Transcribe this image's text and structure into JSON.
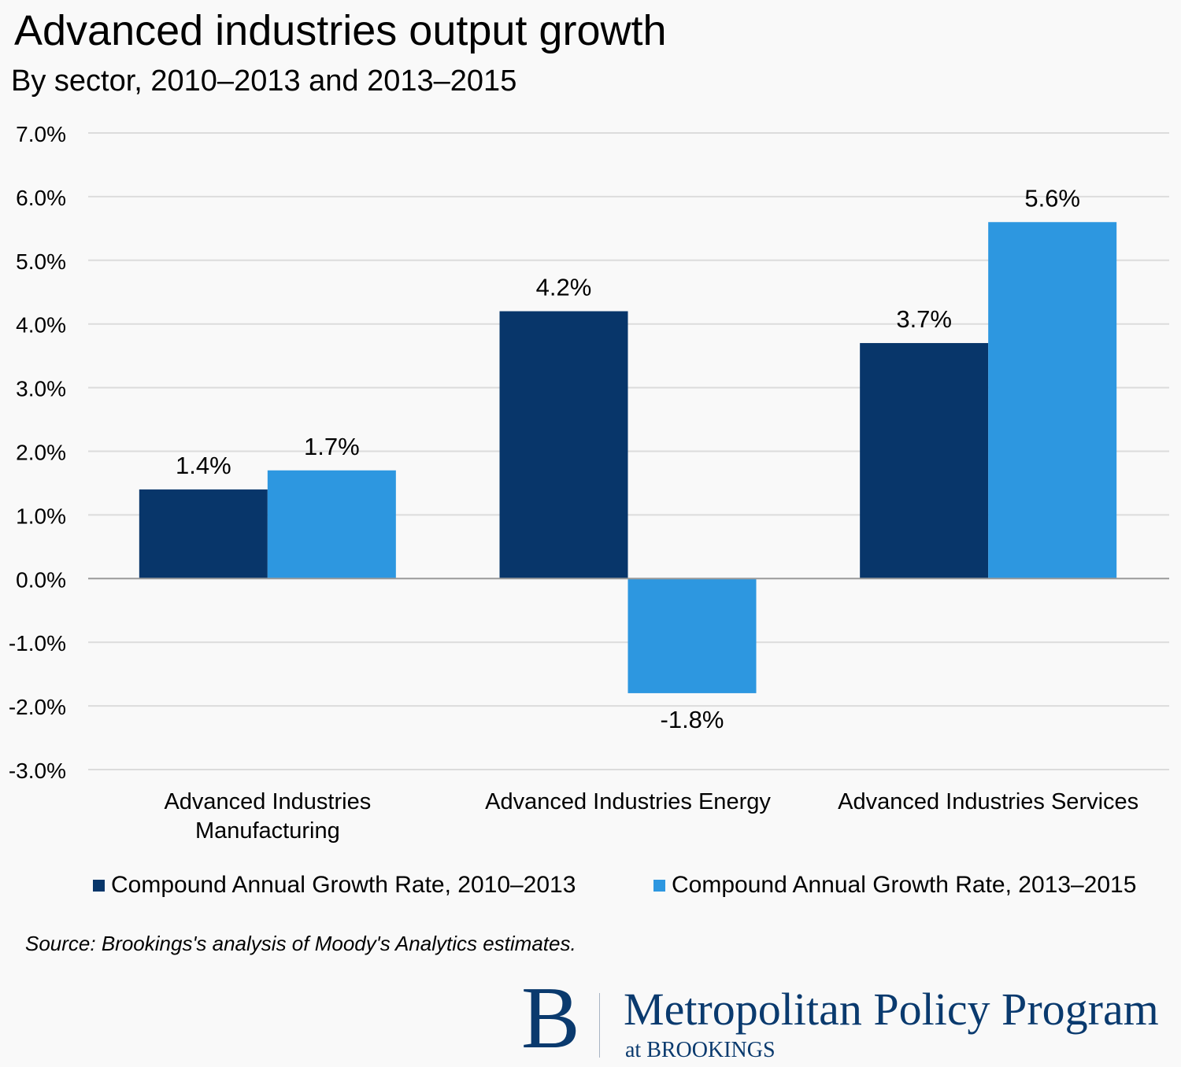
{
  "header": {
    "title": "Advanced industries output growth",
    "subtitle": "By sector, 2010–2013 and 2013–2015"
  },
  "chart_data": {
    "type": "bar",
    "title": "Advanced industries output growth",
    "subtitle": "By sector, 2010–2013 and 2013–2015",
    "xlabel": "",
    "ylabel": "",
    "categories": [
      [
        "Advanced Industries",
        "Manufacturing"
      ],
      [
        "Advanced Industries Energy"
      ],
      [
        "Advanced Industries Services"
      ]
    ],
    "series": [
      {
        "name": "Compound Annual Growth Rate, 2010–2013",
        "color": "#08366a",
        "values": [
          1.4,
          4.2,
          3.7
        ],
        "labels": [
          "1.4%",
          "4.2%",
          "3.7%"
        ]
      },
      {
        "name": "Compound Annual Growth Rate, 2013–2015",
        "color": "#2d97e0",
        "values": [
          1.7,
          -1.8,
          5.6
        ],
        "labels": [
          "1.7%",
          "-1.8%",
          "5.6%"
        ]
      }
    ],
    "ylim": [
      -3,
      7
    ],
    "yticks": [
      7,
      6,
      5,
      4,
      3,
      2,
      1,
      0,
      -1,
      -2,
      -3
    ],
    "ytick_labels": [
      "7.0%",
      "6.0%",
      "5.0%",
      "4.0%",
      "3.0%",
      "2.0%",
      "1.0%",
      "0.0%",
      "-1.0%",
      "-2.0%",
      "-3.0%"
    ],
    "grid": true,
    "legend": "bottom",
    "colors": {
      "gridline": "#dcdcdc",
      "zero_line": "#9a9a9a",
      "background": "#f9f9f9"
    }
  },
  "footer": {
    "source": "Source: Brookings's analysis of Moody's Analytics estimates.",
    "logo": {
      "mark": "B",
      "name": "Metropolitan Policy Program",
      "sub": "at BROOKINGS",
      "color": "#0a3a6e"
    }
  }
}
